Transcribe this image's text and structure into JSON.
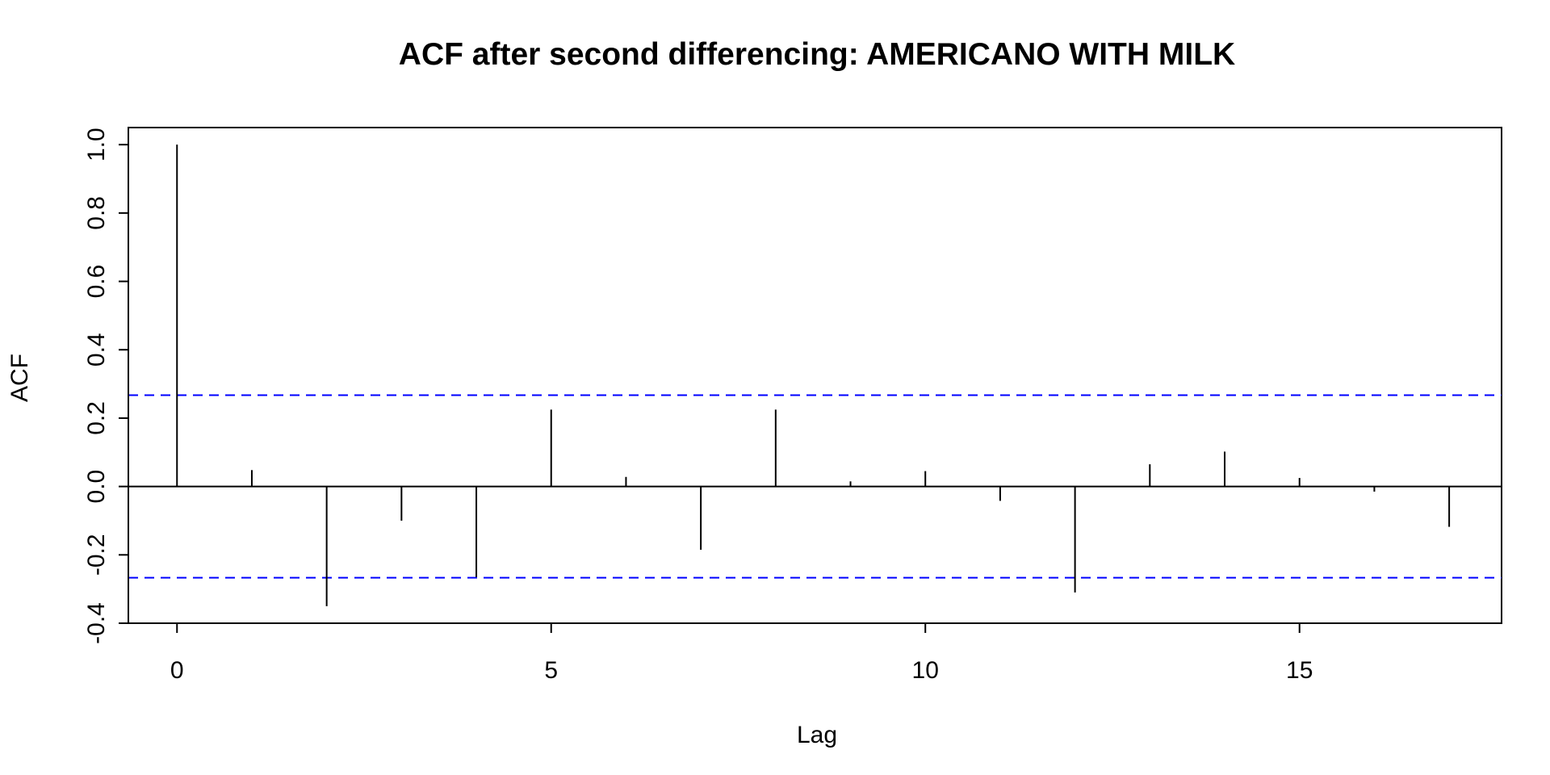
{
  "chart_data": {
    "type": "bar",
    "title": "ACF after second differencing: AMERICANO WITH MILK",
    "xlabel": "Lag",
    "ylabel": "ACF",
    "xlim": [
      -0.65,
      17.7
    ],
    "ylim": [
      -0.4,
      1.05
    ],
    "x_ticks": [
      0,
      5,
      10,
      15
    ],
    "x_tick_labels": [
      "0",
      "5",
      "10",
      "15"
    ],
    "y_ticks": [
      -0.4,
      -0.2,
      0.0,
      0.2,
      0.4,
      0.6,
      0.8,
      1.0
    ],
    "y_tick_labels": [
      "-0.4",
      "-0.2",
      "0.0",
      "0.2",
      "0.4",
      "0.6",
      "0.8",
      "1.0"
    ],
    "lags": [
      0,
      1,
      2,
      3,
      4,
      5,
      6,
      7,
      8,
      9,
      10,
      11,
      12,
      13,
      14,
      15,
      16,
      17
    ],
    "values": [
      1.0,
      0.048,
      -0.35,
      -0.1,
      -0.265,
      0.225,
      0.028,
      -0.185,
      0.225,
      0.015,
      0.045,
      -0.042,
      -0.31,
      0.065,
      0.102,
      0.025,
      -0.015,
      -0.118
    ],
    "confidence_bound": 0.267,
    "grid": false,
    "colors": {
      "bars": "#000000",
      "confidence_lines": "#0000ff",
      "zero_line": "#000000"
    }
  }
}
